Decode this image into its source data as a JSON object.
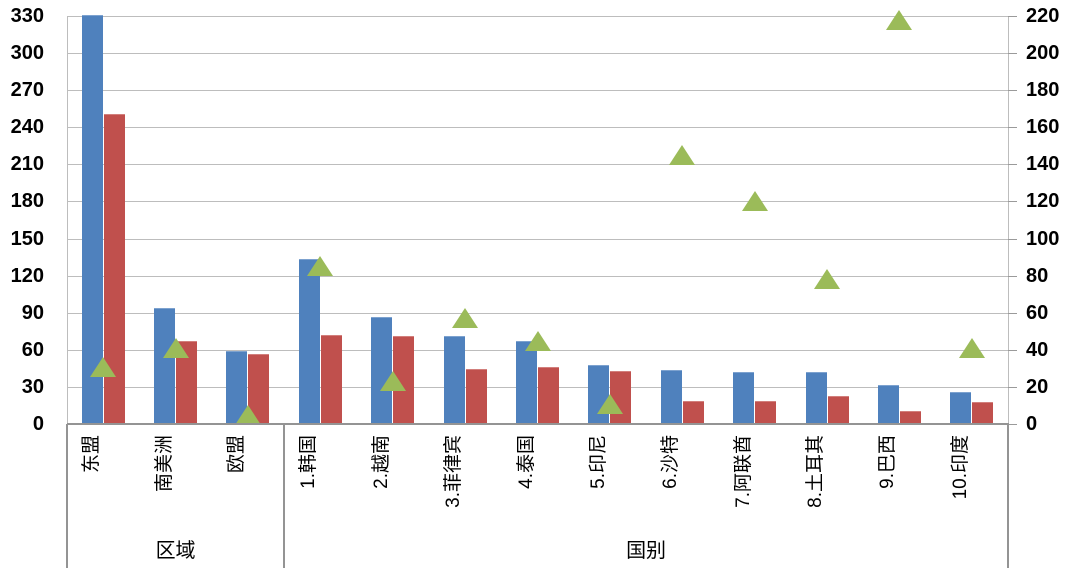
{
  "chart_data": {
    "type": "bar",
    "title": "",
    "legend": "none",
    "grid": true,
    "categories": [
      "东盟",
      "南美洲",
      "欧盟",
      "1.韩国",
      "2.越南",
      "3.菲律宾",
      "4.泰国",
      "5.印尼",
      "6.沙特",
      "7.阿联酋",
      "8.土耳其",
      "9.巴西",
      "10.印度"
    ],
    "category_groups": [
      {
        "label": "区域",
        "start": 0,
        "end": 2
      },
      {
        "label": "国别",
        "start": 3,
        "end": 12
      }
    ],
    "series": [
      {
        "id": "blue_bars",
        "type": "bar",
        "axis": "left",
        "color": "#4f81bd",
        "values": [
          330,
          93,
          58,
          133,
          86,
          70,
          66,
          47,
          43,
          41,
          41,
          31,
          25
        ]
      },
      {
        "id": "red_bars",
        "type": "bar",
        "axis": "left",
        "color": "#c0504d",
        "values": [
          250,
          66,
          56,
          71,
          70,
          44,
          45,
          42,
          18,
          18,
          22,
          10,
          17
        ]
      },
      {
        "id": "green_triangle_markers",
        "type": "scatter",
        "marker": "triangle",
        "axis": "right",
        "color": "#9bbb59",
        "values": [
          31,
          41,
          5,
          85,
          23,
          57,
          45,
          11,
          145,
          120,
          78,
          218,
          41
        ]
      }
    ],
    "left_axis": {
      "min": 0,
      "max": 330,
      "step": 30,
      "tick_labels": [
        "0",
        "30",
        "60",
        "90",
        "120",
        "150",
        "180",
        "210",
        "240",
        "270",
        "300",
        "330"
      ]
    },
    "right_axis": {
      "min": 0,
      "max": 220,
      "step": 20,
      "tick_labels": [
        "0",
        "20",
        "40",
        "60",
        "80",
        "100",
        "120",
        "140",
        "160",
        "180",
        "200",
        "220"
      ]
    }
  },
  "colors": {
    "bar_blue": "#4f81bd",
    "bar_red": "#c0504d",
    "marker_green": "#9bbb59",
    "gridline": "#bdbdbd",
    "axis_line": "#949494",
    "text": "#000000",
    "background": "#ffffff"
  }
}
